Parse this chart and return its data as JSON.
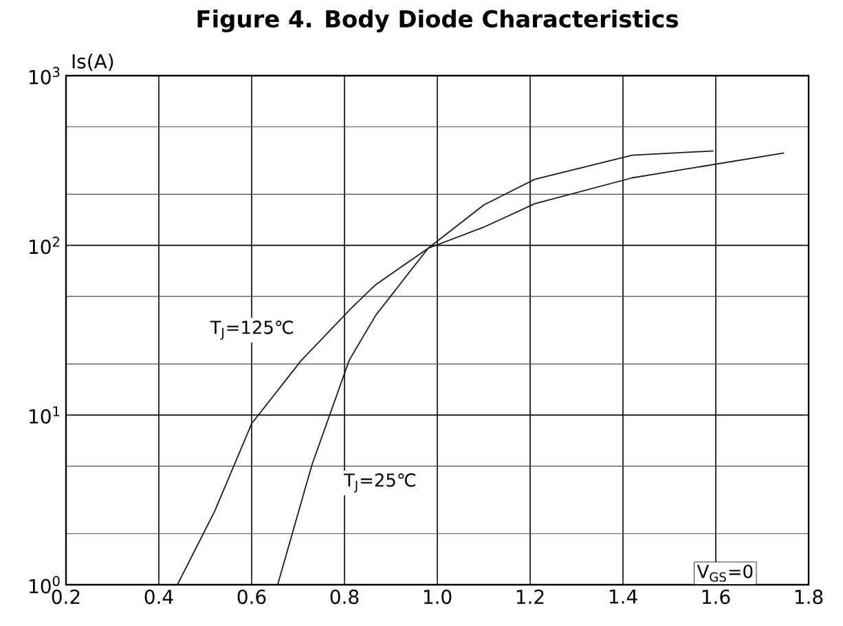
{
  "chart_data": {
    "type": "line",
    "title": "Figure 4. Body Diode Characteristics",
    "ylabel": "Is(A)",
    "log": "y",
    "grid": true,
    "marker": "none",
    "line_style": "solid",
    "xlim": [
      0.2,
      1.8
    ],
    "ylim": [
      1,
      1000
    ],
    "xticks": [
      0.2,
      0.4,
      0.6,
      0.8,
      {
        "value": 1.0,
        "label": "1.0"
      },
      1.2,
      1.4,
      1.6,
      1.8
    ],
    "yticks": [
      {
        "value": 1,
        "label": "10$^{0}$"
      },
      {
        "value": 10,
        "label": "10$^{1}$"
      },
      {
        "value": 100,
        "label": "10$^{2}$"
      },
      {
        "value": 1000,
        "label": "10$^{3}$"
      }
    ],
    "series": [
      {
        "color": "#1a1a1a",
        "x": [
          0.44,
          0.52,
          0.6,
          0.707,
          0.816,
          0.867,
          0.98,
          1.1,
          1.21,
          1.42,
          1.747
        ],
        "values": [
          1,
          2.7,
          8.9,
          21,
          43,
          58.6,
          96,
          128,
          176,
          250,
          350
        ]
      },
      {
        "color": "#1a1a1a",
        "x": [
          0.656,
          0.73,
          0.81,
          0.867,
          0.98,
          1.1,
          1.21,
          1.42,
          1.595
        ],
        "values": [
          1,
          5.1,
          21,
          38.6,
          96,
          173,
          245,
          340,
          360
        ]
      }
    ],
    "annotations": [
      "T$_{J}$=125℃",
      "T$_{J}$=25℃",
      "V$_{GS}$=0"
    ]
  }
}
